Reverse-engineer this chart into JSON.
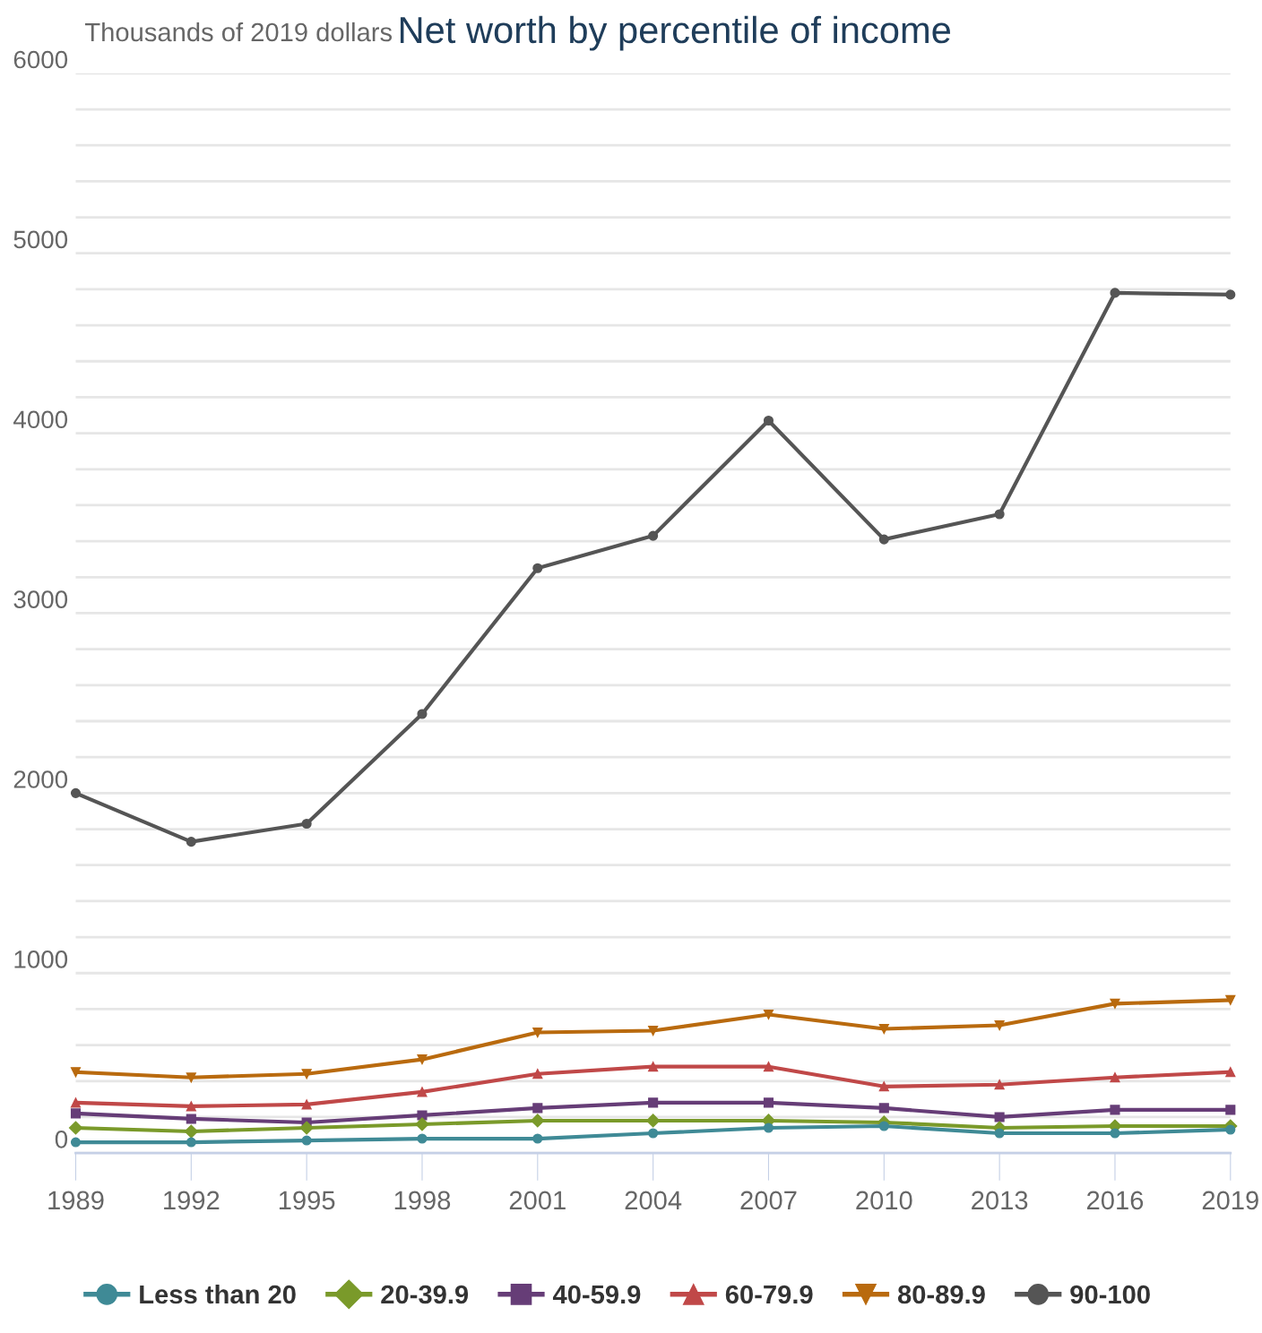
{
  "chart_data": {
    "type": "line",
    "title": "Net worth by percentile of income",
    "ylabel": "Thousands of 2019 dollars",
    "x": [
      1989,
      1992,
      1995,
      1998,
      2001,
      2004,
      2007,
      2010,
      2013,
      2016,
      2019
    ],
    "xlim": [
      1989,
      2019
    ],
    "xticks": [
      1989,
      1992,
      1995,
      1998,
      2001,
      2004,
      2007,
      2010,
      2013,
      2016,
      2019
    ],
    "ylim": [
      0,
      6000
    ],
    "yticks": [
      0,
      {
        "value": 200,
        "label": null
      },
      {
        "value": 400,
        "label": null
      },
      {
        "value": 600,
        "label": null
      },
      {
        "value": 800,
        "label": null
      },
      1000,
      {
        "value": 1200,
        "label": null
      },
      {
        "value": 1400,
        "label": null
      },
      {
        "value": 1600,
        "label": null
      },
      {
        "value": 1800,
        "label": null
      },
      2000,
      {
        "value": 2200,
        "label": null
      },
      {
        "value": 2400,
        "label": null
      },
      {
        "value": 2600,
        "label": null
      },
      {
        "value": 2800,
        "label": null
      },
      3000,
      {
        "value": 3200,
        "label": null
      },
      {
        "value": 3400,
        "label": null
      },
      {
        "value": 3600,
        "label": null
      },
      {
        "value": 3800,
        "label": null
      },
      4000,
      {
        "value": 4200,
        "label": null
      },
      {
        "value": 4400,
        "label": null
      },
      {
        "value": 4600,
        "label": null
      },
      {
        "value": 4800,
        "label": null
      },
      5000,
      {
        "value": 5200,
        "label": null
      },
      {
        "value": 5400,
        "label": null
      },
      {
        "value": 5600,
        "label": null
      },
      {
        "value": 5800,
        "label": null
      },
      6000
    ],
    "grid": "y",
    "legend": "bottom",
    "line_style": "solid",
    "series": [
      {
        "name": "Less than 20",
        "color": "#3f8a96",
        "marker": "circle",
        "values": [
          60,
          60,
          70,
          80,
          80,
          110,
          140,
          150,
          110,
          110,
          130
        ]
      },
      {
        "name": "20-39.9",
        "color": "#7a9a2a",
        "marker": "diamond",
        "values": [
          140,
          120,
          140,
          160,
          180,
          180,
          180,
          170,
          140,
          150,
          150
        ]
      },
      {
        "name": "40-59.9",
        "color": "#663d77",
        "marker": "square",
        "values": [
          220,
          190,
          170,
          210,
          250,
          280,
          280,
          250,
          200,
          240,
          240
        ]
      },
      {
        "name": "60-79.9",
        "color": "#c04848",
        "marker": "triangle",
        "values": [
          280,
          260,
          270,
          340,
          440,
          480,
          480,
          370,
          380,
          420,
          450
        ]
      },
      {
        "name": "80-89.9",
        "color": "#b96a0e",
        "marker": "triangle_down",
        "values": [
          450,
          420,
          440,
          520,
          670,
          680,
          770,
          690,
          710,
          830,
          850
        ]
      },
      {
        "name": "90-100",
        "color": "#555555",
        "marker": "circle",
        "values": [
          2000,
          1730,
          1830,
          2440,
          3250,
          3430,
          4070,
          3410,
          3550,
          4780,
          4770
        ]
      }
    ]
  }
}
